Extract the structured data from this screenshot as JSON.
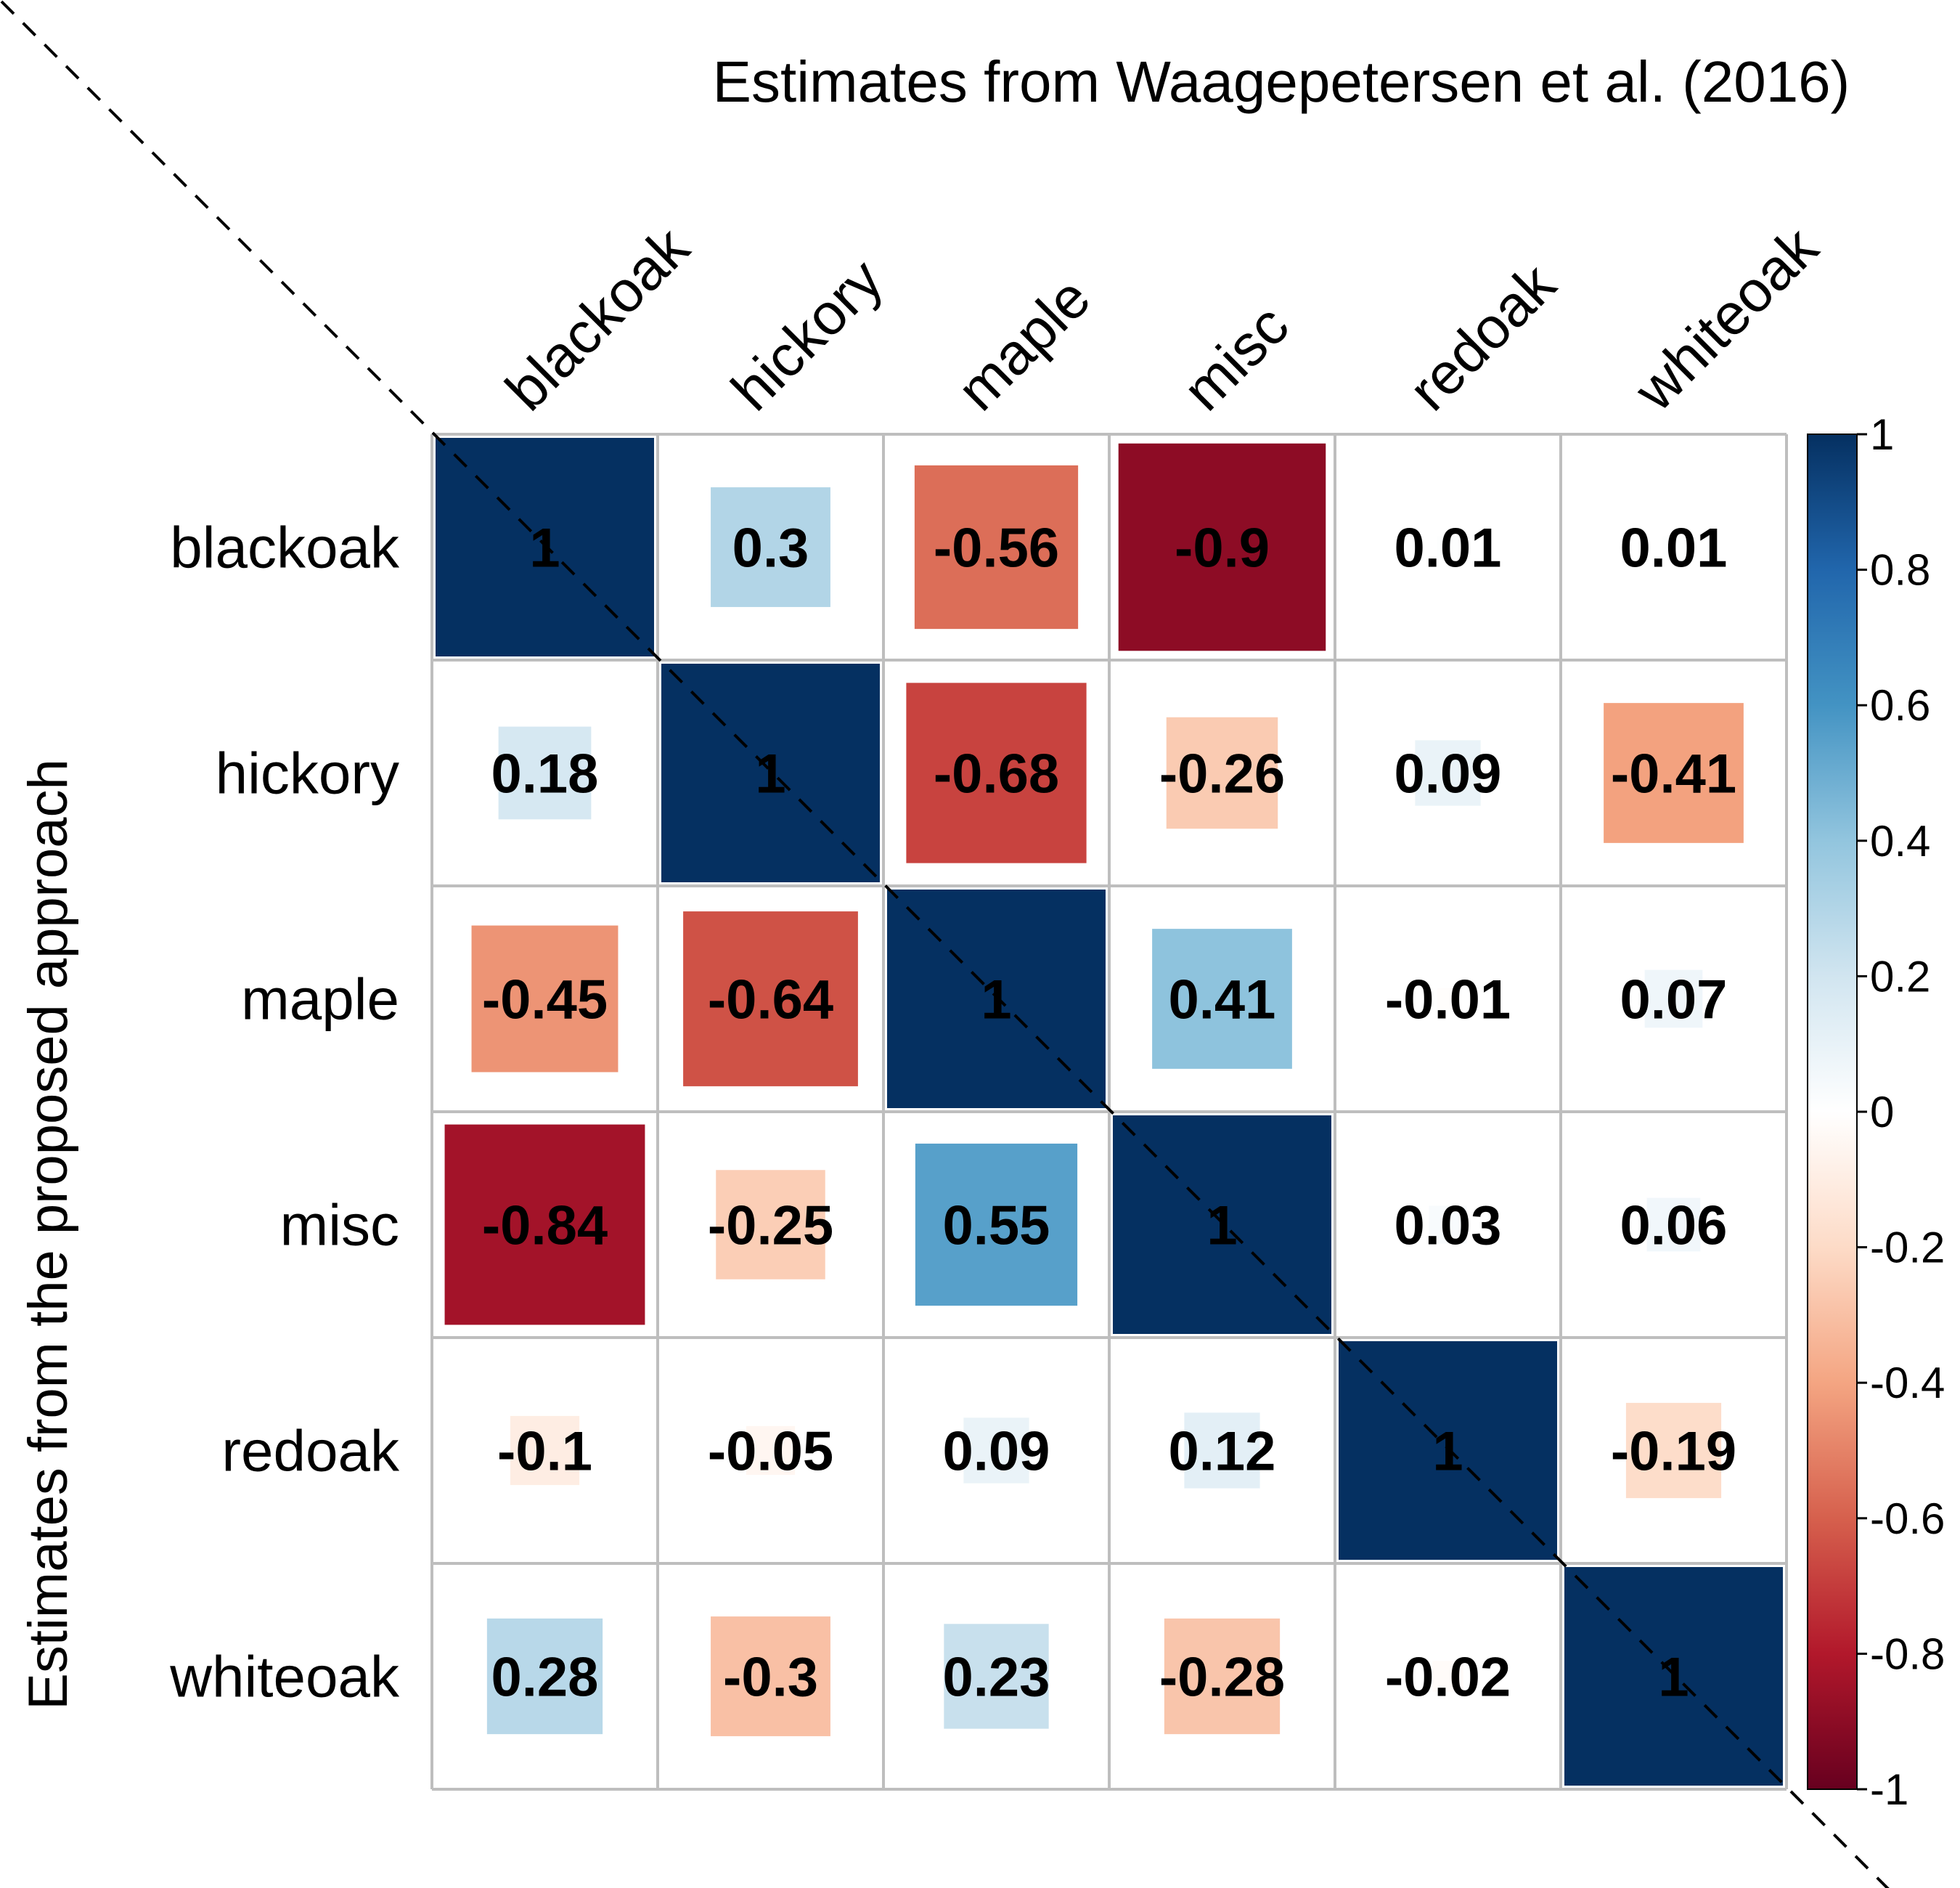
{
  "chart_data": {
    "type": "heatmap",
    "title": "Estimates from Waagepetersen et al. (2016)",
    "ylabel": "Estimates from the proposed approach",
    "categories": [
      "blackoak",
      "hickory",
      "maple",
      "misc",
      "redoak",
      "whiteoak"
    ],
    "values": [
      [
        1,
        0.3,
        -0.56,
        -0.9,
        0.01,
        0.01
      ],
      [
        0.18,
        1,
        -0.68,
        -0.26,
        0.09,
        -0.41
      ],
      [
        -0.45,
        -0.64,
        1,
        0.41,
        -0.01,
        0.07
      ],
      [
        -0.84,
        -0.25,
        0.55,
        1,
        0.03,
        0.06
      ],
      [
        -0.1,
        -0.05,
        0.09,
        0.12,
        1,
        -0.19
      ],
      [
        0.28,
        -0.3,
        0.23,
        -0.28,
        -0.02,
        1
      ]
    ],
    "value_labels": [
      [
        "1",
        "0.3",
        "-0.56",
        "-0.9",
        "0.01",
        "0.01"
      ],
      [
        "0.18",
        "1",
        "-0.68",
        "-0.26",
        "0.09",
        "-0.41"
      ],
      [
        "-0.45",
        "-0.64",
        "1",
        "0.41",
        "-0.01",
        "0.07"
      ],
      [
        "-0.84",
        "-0.25",
        "0.55",
        "1",
        "0.03",
        "0.06"
      ],
      [
        "-0.1",
        "-0.05",
        "0.09",
        "0.12",
        "1",
        "-0.19"
      ],
      [
        "0.28",
        "-0.3",
        "0.23",
        "-0.28",
        "-0.02",
        "1"
      ]
    ],
    "color_range": [
      -1,
      1
    ],
    "colorbar_ticks": [
      1,
      0.8,
      0.6,
      0.4,
      0.2,
      0,
      -0.2,
      -0.4,
      -0.6,
      -0.8,
      -1
    ],
    "colorbar_tick_labels": [
      "1",
      "0.8",
      "0.6",
      "0.4",
      "0.2",
      "0",
      "-0.2",
      "-0.4",
      "-0.6",
      "-0.8",
      "-1"
    ],
    "legend": "right",
    "grid": true,
    "diagonal_line": "dashed"
  }
}
